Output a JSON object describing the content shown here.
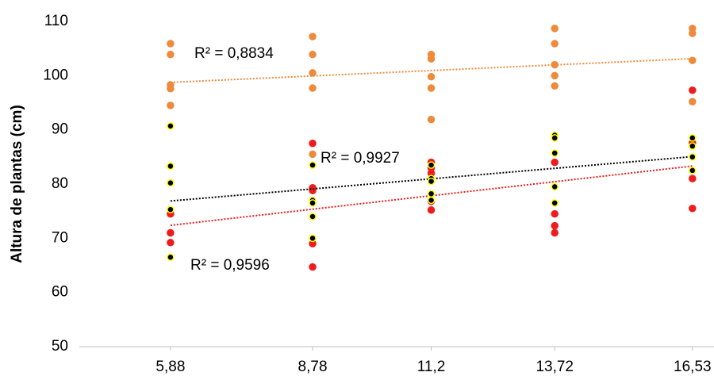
{
  "chart_data": {
    "type": "scatter",
    "y_label": "Altura de plantas (cm)",
    "xlim": [
      4.02,
      16.97
    ],
    "xticks": [
      {
        "value": 5.88,
        "label": "5,88"
      },
      {
        "value": 8.78,
        "label": "8,78"
      },
      {
        "value": 11.2,
        "label": "11,2"
      },
      {
        "value": 13.72,
        "label": "13,72"
      },
      {
        "value": 16.53,
        "label": "16,53"
      }
    ],
    "ylim": [
      50,
      110
    ],
    "yticks": [
      50,
      60,
      70,
      80,
      90,
      100,
      110
    ],
    "grid": false,
    "trendline": true,
    "series": [
      {
        "color": "#ee8a3c",
        "stroke": "#ee8a3c",
        "trend_label": "R² = 0,8834",
        "x": [
          5.88,
          5.88,
          5.88,
          5.88,
          5.88,
          8.78,
          8.78,
          8.78,
          8.78,
          8.78,
          11.2,
          11.2,
          11.2,
          11.2,
          11.2,
          13.72,
          13.72,
          13.72,
          13.72,
          13.72,
          16.53,
          16.53,
          16.53,
          16.53
        ],
        "values": [
          105.9,
          103.9,
          98.3,
          97.6,
          94.5,
          107.2,
          103.9,
          100.5,
          97.7,
          85.5,
          103.9,
          103.1,
          99.8,
          97.7,
          91.9,
          108.7,
          105.9,
          102,
          100,
          98.1,
          108.7,
          107.8,
          102.8,
          95.2
        ]
      },
      {
        "color": "#ee1c1c",
        "stroke": "#ee1c1c",
        "trend_label": "R² = 0,9596",
        "x": [
          5.88,
          5.88,
          5.88,
          8.78,
          8.78,
          8.78,
          8.78,
          8.78,
          11.2,
          11.2,
          11.2,
          11.2,
          11.2,
          13.72,
          13.72,
          13.72,
          13.72,
          16.53,
          16.53,
          16.53,
          16.53
        ],
        "values": [
          74.5,
          71,
          69.2,
          87.5,
          79.3,
          78.8,
          69,
          64.7,
          84,
          83,
          82,
          76.8,
          75.2,
          84,
          74.5,
          72.3,
          71,
          97.3,
          87.6,
          81,
          75.5
        ]
      },
      {
        "color": "#000000",
        "stroke": "#ffff00",
        "trend_label": "R² = 0,9927",
        "x": [
          5.88,
          5.88,
          5.88,
          5.88,
          5.88,
          8.78,
          8.78,
          8.78,
          8.78,
          8.78,
          11.2,
          11.2,
          11.2,
          11.2,
          11.2,
          13.72,
          13.72,
          13.72,
          13.72,
          13.72,
          16.53,
          16.53,
          16.53,
          16.53
        ],
        "values": [
          90.7,
          83.3,
          80.2,
          75.3,
          66.5,
          83.5,
          77,
          76.5,
          74,
          70,
          83.5,
          81,
          80.5,
          78.2,
          77,
          89,
          88.5,
          85.7,
          79.5,
          76.5,
          88.5,
          87,
          85,
          82.5
        ]
      }
    ]
  }
}
